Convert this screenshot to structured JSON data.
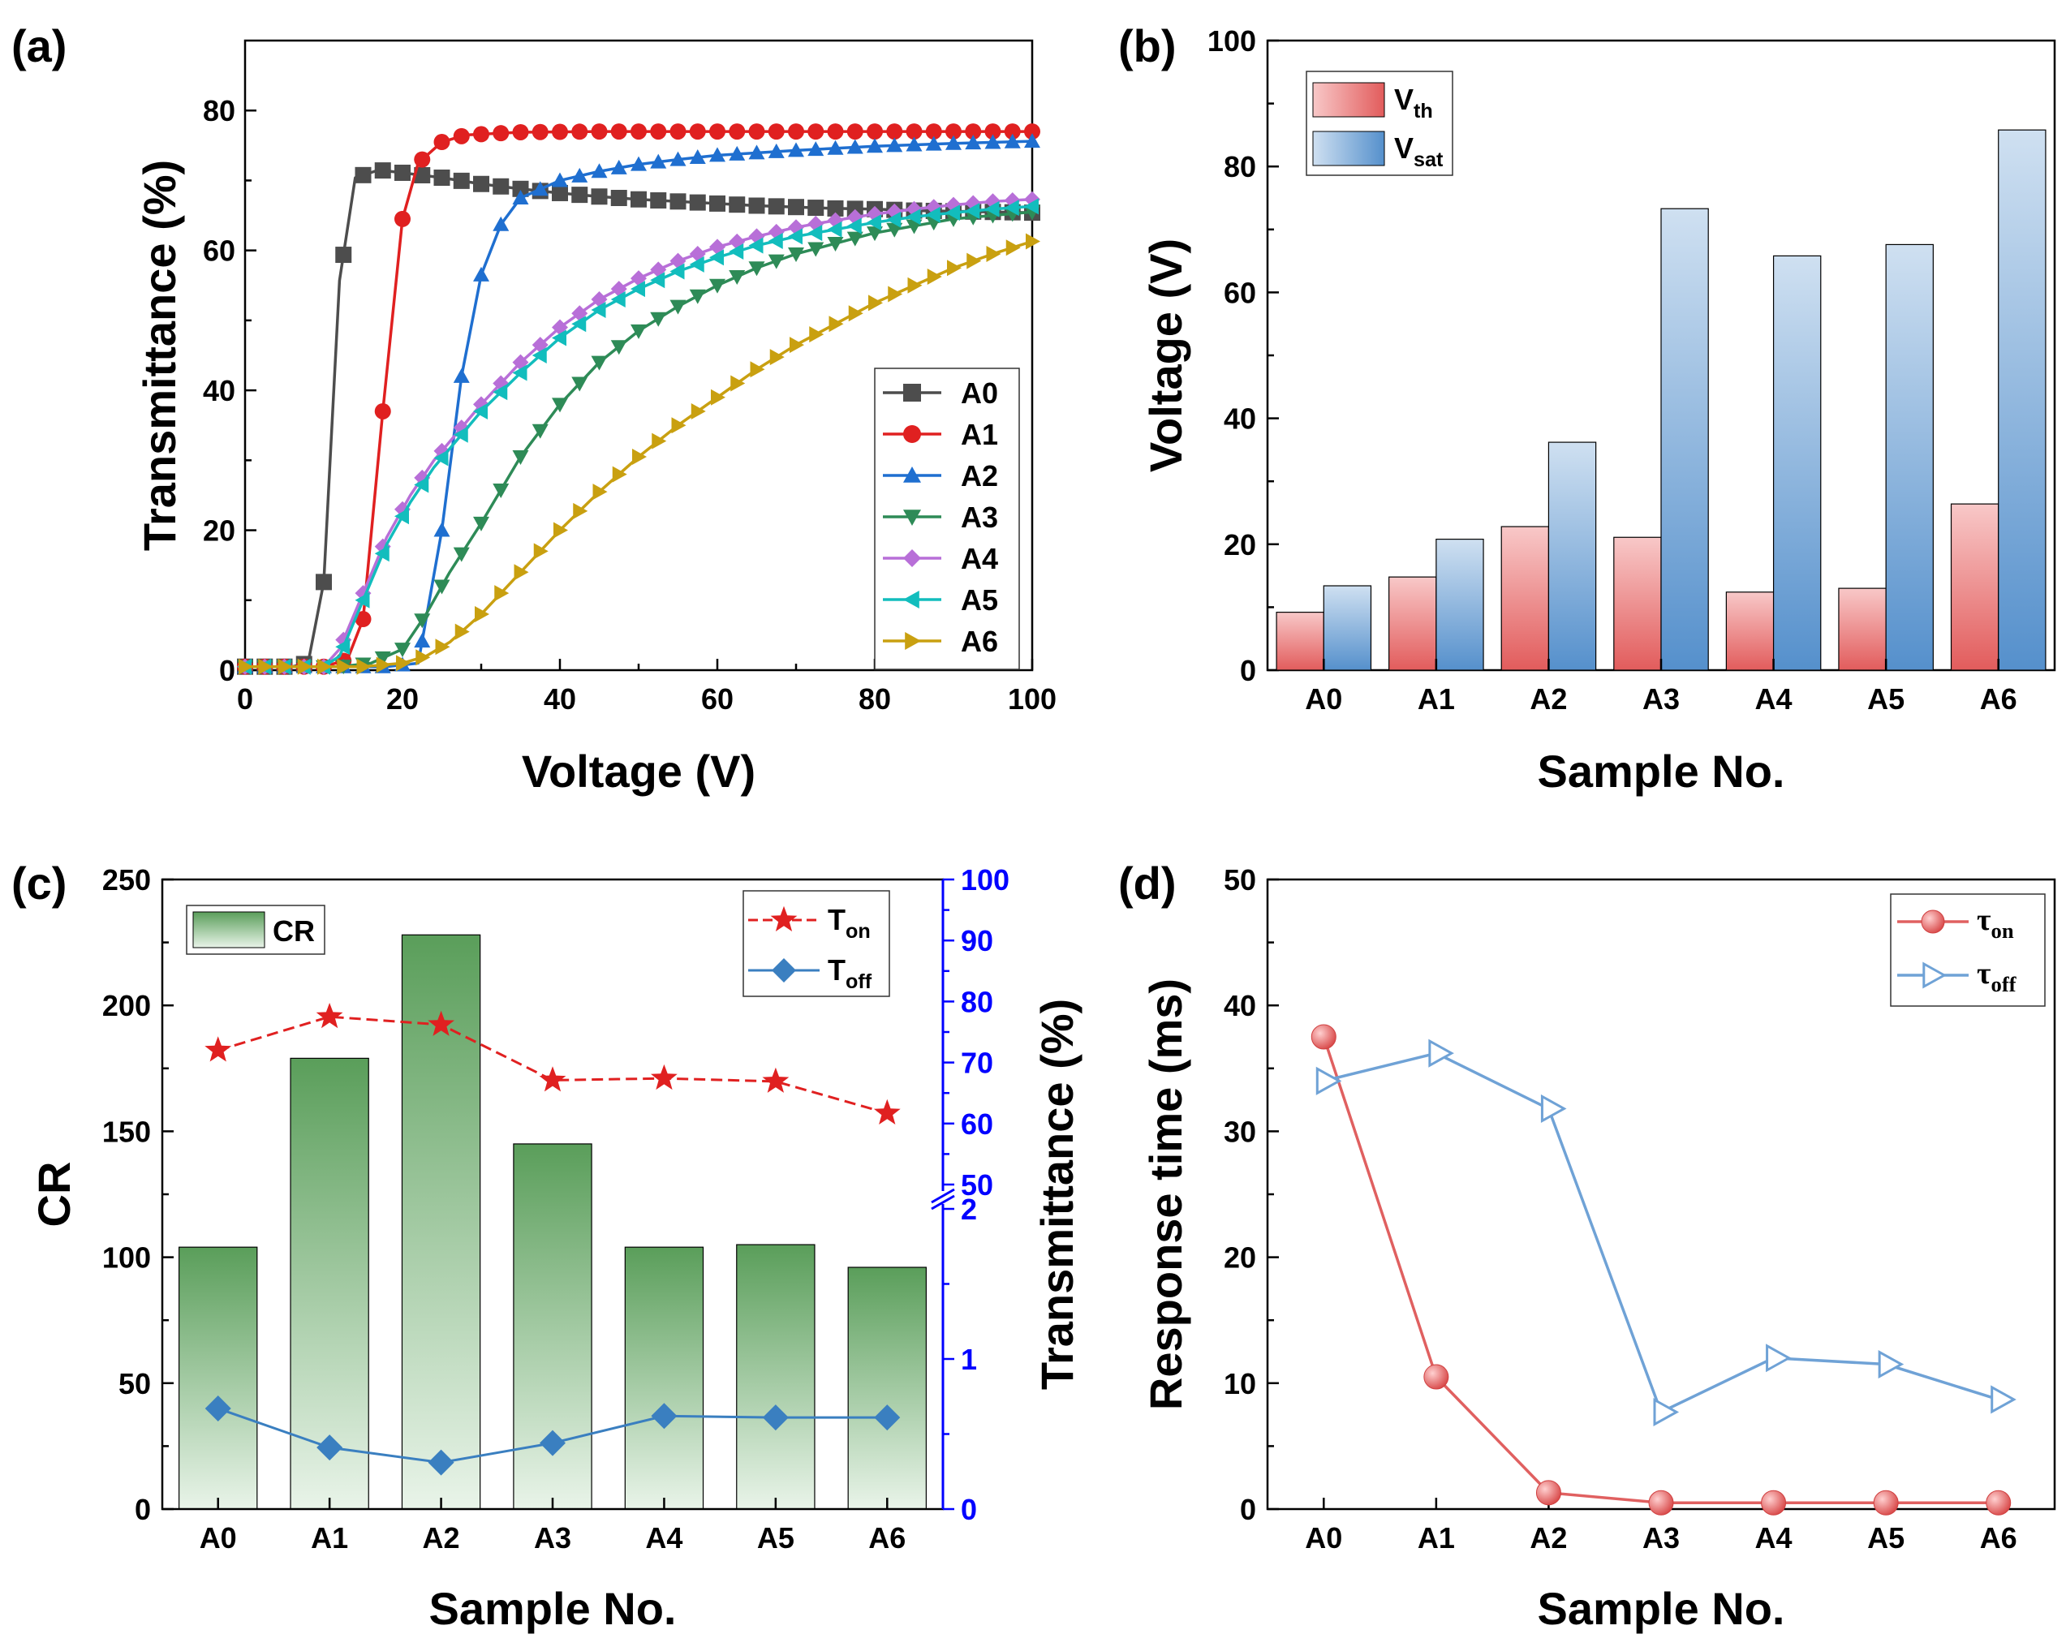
{
  "figure": {
    "panels": [
      "(a)",
      "(b)",
      "(c)",
      "(d)"
    ]
  },
  "chart_data": [
    {
      "panel": "(a)",
      "type": "line",
      "title": "",
      "xlabel": "Voltage (V)",
      "ylabel": "Transmittance (%)",
      "xlim": [
        0,
        100
      ],
      "ylim": [
        0,
        90
      ],
      "xticks": [
        0,
        20,
        40,
        60,
        80,
        100
      ],
      "yticks": [
        0,
        20,
        40,
        60,
        80
      ],
      "legend": "bottom-right",
      "series": [
        {
          "name": "A0",
          "color": "#4d4d4d",
          "marker": "square",
          "points": [
            [
              0,
              0.5
            ],
            [
              6,
              0.5
            ],
            [
              8,
              1
            ],
            [
              10,
              12.6
            ],
            [
              12,
              55.7
            ],
            [
              14,
              70.4
            ],
            [
              17,
              71.5
            ],
            [
              20,
              71.1
            ],
            [
              25,
              70.4
            ],
            [
              30,
              69.5
            ],
            [
              35,
              68.8
            ],
            [
              40,
              68.2
            ],
            [
              45,
              67.7
            ],
            [
              50,
              67.3
            ],
            [
              55,
              67
            ],
            [
              60,
              66.7
            ],
            [
              65,
              66.4
            ],
            [
              70,
              66.2
            ],
            [
              75,
              66
            ],
            [
              80,
              65.9
            ],
            [
              85,
              65.7
            ],
            [
              90,
              65.6
            ],
            [
              95,
              65.5
            ],
            [
              100,
              65.4
            ]
          ]
        },
        {
          "name": "A1",
          "color": "#e02020",
          "marker": "circle",
          "points": [
            [
              0,
              0.5
            ],
            [
              10,
              0.5
            ],
            [
              13,
              1.5
            ],
            [
              15,
              7.3
            ],
            [
              17.5,
              37
            ],
            [
              20,
              64.5
            ],
            [
              22,
              72.5
            ],
            [
              25,
              75.5
            ],
            [
              28,
              76.5
            ],
            [
              35,
              76.9
            ],
            [
              45,
              77
            ],
            [
              55,
              77
            ],
            [
              65,
              77
            ],
            [
              75,
              77
            ],
            [
              85,
              77
            ],
            [
              100,
              77
            ]
          ]
        },
        {
          "name": "A2",
          "color": "#1f6fd0",
          "marker": "triangle-up",
          "points": [
            [
              0,
              0.5
            ],
            [
              18,
              0.5
            ],
            [
              22,
              1
            ],
            [
              25,
              20
            ],
            [
              27.5,
              42
            ],
            [
              30,
              56.5
            ],
            [
              32.5,
              63.7
            ],
            [
              35,
              67.5
            ],
            [
              40,
              70
            ],
            [
              45,
              71.3
            ],
            [
              50,
              72.3
            ],
            [
              55,
              73
            ],
            [
              60,
              73.6
            ],
            [
              70,
              74.3
            ],
            [
              80,
              74.9
            ],
            [
              90,
              75.3
            ],
            [
              100,
              75.6
            ]
          ]
        },
        {
          "name": "A3",
          "color": "#2e8b57",
          "marker": "triangle-down",
          "points": [
            [
              0,
              0.5
            ],
            [
              12,
              0.5
            ],
            [
              16,
              1
            ],
            [
              20,
              3
            ],
            [
              23,
              8
            ],
            [
              26,
              14
            ],
            [
              30,
              21
            ],
            [
              35,
              30.5
            ],
            [
              40,
              38
            ],
            [
              45,
              44
            ],
            [
              50,
              48.5
            ],
            [
              55,
              52
            ],
            [
              60,
              55
            ],
            [
              65,
              57.5
            ],
            [
              70,
              59.5
            ],
            [
              75,
              61
            ],
            [
              80,
              62.5
            ],
            [
              85,
              63.5
            ],
            [
              90,
              64.5
            ],
            [
              95,
              65
            ],
            [
              100,
              65.5
            ]
          ]
        },
        {
          "name": "A4",
          "color": "#b86fd8",
          "marker": "diamond",
          "points": [
            [
              0,
              0.5
            ],
            [
              10,
              0.5
            ],
            [
              12,
              3
            ],
            [
              15,
              11
            ],
            [
              18,
              19
            ],
            [
              21,
              25
            ],
            [
              24,
              30
            ],
            [
              27,
              34
            ],
            [
              30,
              38
            ],
            [
              35,
              44
            ],
            [
              40,
              49
            ],
            [
              45,
              53
            ],
            [
              50,
              56
            ],
            [
              55,
              58.5
            ],
            [
              60,
              60.5
            ],
            [
              65,
              62
            ],
            [
              70,
              63.3
            ],
            [
              75,
              64.3
            ],
            [
              80,
              65.2
            ],
            [
              85,
              65.9
            ],
            [
              90,
              66.5
            ],
            [
              95,
              67
            ],
            [
              100,
              67.3
            ]
          ]
        },
        {
          "name": "A5",
          "color": "#12bdbd",
          "marker": "triangle-left",
          "points": [
            [
              0,
              0.5
            ],
            [
              10,
              0.5
            ],
            [
              12,
              2
            ],
            [
              15,
              10
            ],
            [
              18,
              18
            ],
            [
              21,
              24
            ],
            [
              24,
              29
            ],
            [
              27,
              33
            ],
            [
              30,
              37
            ],
            [
              35,
              42.5
            ],
            [
              40,
              47.5
            ],
            [
              45,
              51.5
            ],
            [
              50,
              54.5
            ],
            [
              55,
              57
            ],
            [
              60,
              59
            ],
            [
              65,
              60.7
            ],
            [
              70,
              62
            ],
            [
              75,
              63
            ],
            [
              80,
              64
            ],
            [
              85,
              64.8
            ],
            [
              90,
              65.4
            ],
            [
              95,
              65.9
            ],
            [
              100,
              66.3
            ]
          ]
        },
        {
          "name": "A6",
          "color": "#c9a010",
          "marker": "triangle-right",
          "points": [
            [
              0,
              0.5
            ],
            [
              15,
              0.5
            ],
            [
              20,
              1
            ],
            [
              23,
              2
            ],
            [
              26,
              4
            ],
            [
              30,
              8
            ],
            [
              35,
              14
            ],
            [
              40,
              20
            ],
            [
              45,
              25.5
            ],
            [
              50,
              30.5
            ],
            [
              55,
              35
            ],
            [
              60,
              39
            ],
            [
              65,
              43
            ],
            [
              70,
              46.5
            ],
            [
              75,
              49.5
            ],
            [
              80,
              52.5
            ],
            [
              85,
              55
            ],
            [
              90,
              57.5
            ],
            [
              95,
              59.5
            ],
            [
              100,
              61.3
            ]
          ]
        }
      ]
    },
    {
      "panel": "(b)",
      "type": "bar",
      "title": "",
      "xlabel": "Sample No.",
      "ylabel": "Voltage (V)",
      "ylim": [
        0,
        100
      ],
      "yticks": [
        0,
        20,
        40,
        60,
        80,
        100
      ],
      "categories": [
        "A0",
        "A1",
        "A2",
        "A3",
        "A4",
        "A5",
        "A6"
      ],
      "legend": "top-left",
      "series": [
        {
          "name": "V",
          "subscript": "th",
          "color": "#e06060",
          "values": [
            9.2,
            14.8,
            22.8,
            21.1,
            12.4,
            13.0,
            26.4
          ]
        },
        {
          "name": "V",
          "subscript": "sat",
          "color": "#5b96cf",
          "values": [
            13.4,
            20.8,
            36.2,
            73.3,
            65.8,
            67.6,
            85.8
          ]
        }
      ]
    },
    {
      "panel": "(c)",
      "type": "bar",
      "title": "",
      "xlabel": "Sample No.",
      "ylabel": "CR",
      "ylabel_right": "Transmittance (%)",
      "ylim": [
        0,
        250
      ],
      "yticks": [
        0,
        50,
        100,
        150,
        200,
        250
      ],
      "yticks_right_lower": [
        0,
        1,
        2
      ],
      "yticks_right_upper": [
        50,
        60,
        70,
        80,
        90,
        100
      ],
      "categories": [
        "A0",
        "A1",
        "A2",
        "A3",
        "A4",
        "A5",
        "A6"
      ],
      "legend": "top-left / top-right",
      "bars": {
        "name": "CR",
        "color": "#5a9e5a",
        "values": [
          104,
          179,
          228,
          145,
          104,
          105,
          96
        ]
      },
      "lines": [
        {
          "name": "T",
          "subscript": "on",
          "color": "#e02020",
          "marker": "star",
          "axis": "right-upper",
          "values": [
            72,
            77.5,
            76.2,
            67.1,
            67.4,
            66.9,
            61.7
          ]
        },
        {
          "name": "T",
          "subscript": "off",
          "color": "#3a7fc0",
          "marker": "diamond",
          "axis": "right-lower",
          "values": [
            0.67,
            0.41,
            0.31,
            0.44,
            0.62,
            0.61,
            0.61
          ]
        }
      ]
    },
    {
      "panel": "(d)",
      "type": "line",
      "title": "",
      "xlabel": "Sample No.",
      "ylabel": "Response time (ms)",
      "ylim": [
        0,
        50
      ],
      "yticks": [
        0,
        10,
        20,
        30,
        40,
        50
      ],
      "categories": [
        "A0",
        "A1",
        "A2",
        "A3",
        "A4",
        "A5",
        "A6"
      ],
      "legend": "top-right",
      "series": [
        {
          "name": "τ",
          "subscript": "on",
          "color": "#e06060",
          "marker": "circle",
          "values": [
            37.5,
            10.5,
            1.3,
            0.5,
            0.5,
            0.5,
            0.5
          ]
        },
        {
          "name": "τ",
          "subscript": "off",
          "color": "#6fa2d6",
          "marker": "triangle-right-open",
          "values": [
            34,
            36.2,
            31.8,
            7.7,
            12,
            11.5,
            8.7
          ]
        }
      ]
    }
  ]
}
